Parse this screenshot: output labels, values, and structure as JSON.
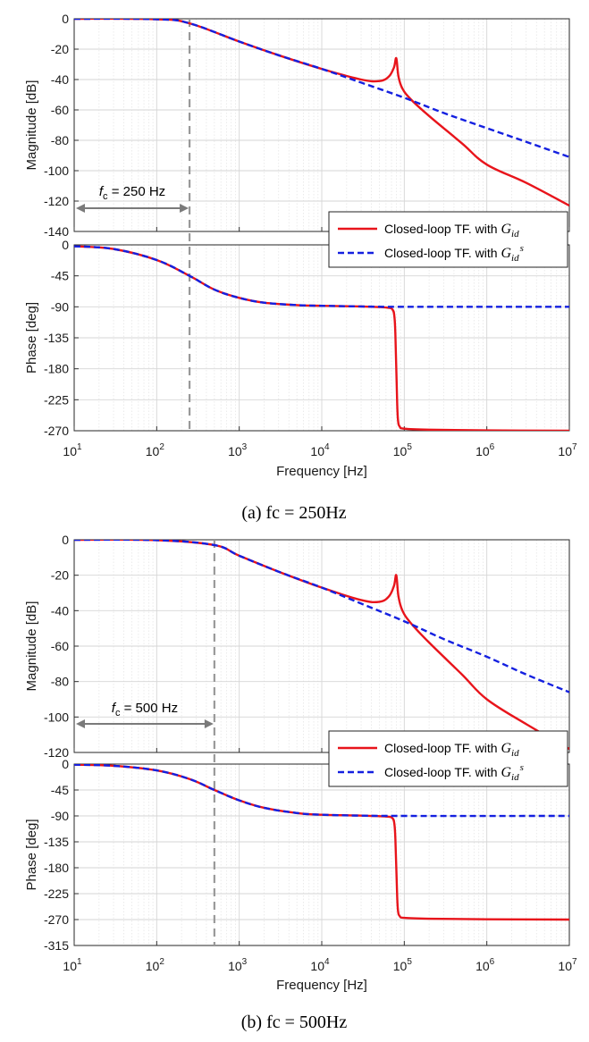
{
  "figure": {
    "legend_entries": [
      "Closed-loop TF. with G_id",
      "Closed-loop TF. with G_id^s"
    ],
    "legend_prefix": "Closed-loop TF. with ",
    "legend_symbol": "G",
    "legend_sub": "id",
    "legend_sup": "s",
    "colors": {
      "closed_loop": "#e8141b",
      "simplified": "#1420e0",
      "marker": "#999999",
      "arrow": "#7a7a7a",
      "grid": "#d9d9d9"
    }
  },
  "chart_data": [
    {
      "type": "line",
      "panel": "a",
      "caption": "(a)  fc  =  250Hz",
      "fc_label": "= 250 Hz",
      "fc_prefix": "f",
      "fc_sub": "c",
      "fc_hz": 250,
      "resonance_hz": 80000,
      "xlabel": "Frequency [Hz]",
      "xscale": "log",
      "xlim": [
        10,
        10000000
      ],
      "x_ticks": [
        10,
        100,
        1000,
        10000,
        100000,
        1000000,
        10000000
      ],
      "grid": true,
      "legend_position": "inside bottom-right of magnitude plot",
      "magnitude": {
        "ylabel": "Magnitude [dB]",
        "ylim": [
          -140,
          0
        ],
        "yticks": [
          0,
          -20,
          -40,
          -60,
          -80,
          -100,
          -120,
          -140
        ],
        "series": [
          {
            "name": "Closed-loop TF. with G_id",
            "style": "solid",
            "x": [
              10,
              100,
              250,
              1000,
              3000,
              10000,
              30000,
              50000,
              65000,
              75000,
              80000,
              85000,
              95000,
              120000,
              200000,
              500000,
              1000000,
              3000000,
              10000000
            ],
            "y": [
              0,
              -0.3,
              -3,
              -15,
              -24,
              -33,
              -40,
              -41,
              -38,
              -32,
              -26,
              -38,
              -46,
              -53,
              -64,
              -82,
              -96,
              -108,
              -123
            ]
          },
          {
            "name": "Closed-loop TF. with G_id^s",
            "style": "dashed",
            "x": [
              10,
              100,
              250,
              1000,
              3000,
              10000,
              30000,
              100000,
              300000,
              1000000,
              3000000,
              10000000
            ],
            "y": [
              0,
              -0.3,
              -3,
              -15,
              -24,
              -33,
              -42,
              -52,
              -62,
              -72,
              -81,
              -91
            ]
          }
        ]
      },
      "phase": {
        "ylabel": "Phase [deg]",
        "ylim": [
          -270,
          0
        ],
        "yticks": [
          0,
          -45,
          -90,
          -135,
          -180,
          -225,
          -270
        ],
        "series": [
          {
            "name": "Closed-loop TF. with G_id",
            "style": "solid",
            "x": [
              10,
              30,
              100,
              250,
              500,
              1000,
              2000,
              5000,
              10000,
              30000,
              60000,
              72000,
              76000,
              78000,
              80000,
              82000,
              84000,
              88000,
              100000,
              200000,
              1000000,
              10000000
            ],
            "y": [
              -2,
              -6,
              -22,
              -45,
              -65,
              -77,
              -84,
              -87.5,
              -88.5,
              -89.5,
              -91,
              -94,
              -105,
              -130,
              -180,
              -230,
              -255,
              -264,
              -267,
              -268.5,
              -269.5,
              -270
            ]
          },
          {
            "name": "Closed-loop TF. with G_id^s",
            "style": "dashed",
            "x": [
              10,
              30,
              100,
              250,
              500,
              1000,
              2000,
              5000,
              10000,
              30000,
              100000,
              10000000
            ],
            "y": [
              -2,
              -6,
              -22,
              -45,
              -65,
              -77,
              -84,
              -87.5,
              -88.5,
              -89.5,
              -90,
              -90
            ]
          }
        ]
      }
    },
    {
      "type": "line",
      "panel": "b",
      "caption": "(b)  fc  =  500Hz",
      "fc_label": "= 500 Hz",
      "fc_prefix": "f",
      "fc_sub": "c",
      "fc_hz": 500,
      "resonance_hz": 80000,
      "xlabel": "Frequency [Hz]",
      "xscale": "log",
      "xlim": [
        10,
        10000000
      ],
      "x_ticks": [
        10,
        100,
        1000,
        10000,
        100000,
        1000000,
        10000000
      ],
      "grid": true,
      "legend_position": "inside bottom-right of magnitude plot",
      "magnitude": {
        "ylabel": "Magnitude [dB]",
        "ylim": [
          -120,
          0
        ],
        "yticks": [
          0,
          -20,
          -40,
          -60,
          -80,
          -100,
          -120
        ],
        "series": [
          {
            "name": "Closed-loop TF. with G_id",
            "style": "solid",
            "x": [
              10,
              100,
              500,
              1000,
              3000,
              10000,
              30000,
              50000,
              65000,
              75000,
              80000,
              85000,
              95000,
              120000,
              200000,
              500000,
              1000000,
              3000000,
              10000000
            ],
            "y": [
              0,
              -0.2,
              -3,
              -9,
              -18,
              -27,
              -34,
              -35,
              -32,
              -26,
              -20,
              -32,
              -40,
              -47,
              -58,
              -76,
              -90,
              -104,
              -118
            ]
          },
          {
            "name": "Closed-loop TF. with G_id^s",
            "style": "dashed",
            "x": [
              10,
              100,
              500,
              1000,
              3000,
              10000,
              30000,
              100000,
              300000,
              1000000,
              3000000,
              10000000
            ],
            "y": [
              0,
              -0.2,
              -3,
              -9,
              -18,
              -27,
              -36,
              -46,
              -56,
              -66,
              -76,
              -86
            ]
          }
        ]
      },
      "phase": {
        "ylabel": "Phase [deg]",
        "ylim": [
          -315,
          0
        ],
        "yticks": [
          0,
          -45,
          -90,
          -135,
          -180,
          -225,
          -270,
          -315
        ],
        "series": [
          {
            "name": "Closed-loop TF. with G_id",
            "style": "solid",
            "x": [
              10,
              30,
              100,
              250,
              500,
              1000,
              2000,
              5000,
              10000,
              30000,
              60000,
              72000,
              76000,
              78000,
              80000,
              82000,
              84000,
              88000,
              100000,
              200000,
              1000000,
              10000000
            ],
            "y": [
              -1,
              -3,
              -11,
              -26,
              -45,
              -63,
              -76,
              -85,
              -88,
              -89.5,
              -91,
              -94,
              -105,
              -130,
              -180,
              -230,
              -255,
              -264,
              -267,
              -268.5,
              -269.5,
              -270
            ]
          },
          {
            "name": "Closed-loop TF. with G_id^s",
            "style": "dashed",
            "x": [
              10,
              30,
              100,
              250,
              500,
              1000,
              2000,
              5000,
              10000,
              30000,
              100000,
              10000000
            ],
            "y": [
              -1,
              -3,
              -11,
              -26,
              -45,
              -63,
              -76,
              -85,
              -88,
              -89.5,
              -90,
              -90
            ]
          }
        ]
      }
    }
  ]
}
